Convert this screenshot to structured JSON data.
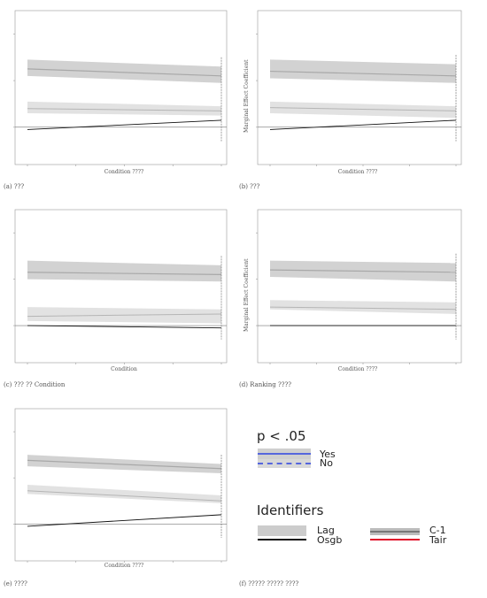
{
  "chart_data": [
    {
      "type": "line",
      "caption": "(a) ???",
      "ylabel": "",
      "xlabel": "Condition ????",
      "ylim": [
        -0.8,
        2.5
      ],
      "x": [
        0,
        1
      ],
      "series": [
        {
          "role": "lag_band",
          "lower": [
            1.1,
            0.95
          ],
          "upper": [
            1.45,
            1.3
          ]
        },
        {
          "role": "lag_mid",
          "values": [
            1.25,
            1.1
          ]
        },
        {
          "role": "lower_band",
          "lower": [
            0.3,
            0.25
          ],
          "upper": [
            0.55,
            0.45
          ]
        },
        {
          "role": "lower_mid",
          "values": [
            0.4,
            0.35
          ]
        },
        {
          "role": "osgb",
          "values": [
            -0.05,
            0.15
          ]
        }
      ]
    },
    {
      "type": "line",
      "caption": "(b) ???",
      "ylabel": "Marginal Effect Coefficient",
      "xlabel": "Condition ????",
      "ylim": [
        -0.8,
        2.5
      ],
      "x": [
        0,
        1
      ],
      "series": [
        {
          "role": "lag_band",
          "lower": [
            1.05,
            0.95
          ],
          "upper": [
            1.45,
            1.35
          ]
        },
        {
          "role": "lag_mid",
          "values": [
            1.2,
            1.1
          ]
        },
        {
          "role": "lower_band",
          "lower": [
            0.3,
            0.2
          ],
          "upper": [
            0.55,
            0.45
          ]
        },
        {
          "role": "lower_mid",
          "values": [
            0.42,
            0.35
          ]
        },
        {
          "role": "osgb",
          "values": [
            -0.05,
            0.15
          ]
        }
      ]
    },
    {
      "type": "line",
      "caption": "(c) ??? ?? Condition",
      "ylabel": "",
      "xlabel": "Condition",
      "ylim": [
        -0.8,
        2.5
      ],
      "x": [
        0,
        1
      ],
      "series": [
        {
          "role": "lag_band",
          "lower": [
            1.0,
            0.95
          ],
          "upper": [
            1.4,
            1.3
          ]
        },
        {
          "role": "lag_mid",
          "values": [
            1.15,
            1.1
          ]
        },
        {
          "role": "lower_band",
          "lower": [
            0.1,
            0.05
          ],
          "upper": [
            0.4,
            0.35
          ]
        },
        {
          "role": "lower_mid",
          "values": [
            0.2,
            0.25
          ]
        },
        {
          "role": "osgb",
          "values": [
            0.0,
            -0.05
          ]
        }
      ]
    },
    {
      "type": "line",
      "caption": "(d) Ranking ????",
      "ylabel": "Marginal Effect Coefficient",
      "xlabel": "Condition ????",
      "ylim": [
        -0.8,
        2.5
      ],
      "x": [
        0,
        1
      ],
      "series": [
        {
          "role": "lag_band",
          "lower": [
            1.05,
            0.95
          ],
          "upper": [
            1.4,
            1.35
          ]
        },
        {
          "role": "lag_mid",
          "values": [
            1.2,
            1.15
          ]
        },
        {
          "role": "lower_band",
          "lower": [
            0.35,
            0.25
          ],
          "upper": [
            0.55,
            0.5
          ]
        },
        {
          "role": "lower_mid",
          "values": [
            0.4,
            0.35
          ]
        },
        {
          "role": "osgb",
          "values": [
            0.0,
            0.0
          ]
        }
      ]
    },
    {
      "type": "line",
      "caption": "(e) ????",
      "ylabel": "",
      "xlabel": "Condition ????",
      "ylim": [
        -0.8,
        2.5
      ],
      "x": [
        0,
        1
      ],
      "series": [
        {
          "role": "lag_band",
          "lower": [
            1.25,
            1.1
          ],
          "upper": [
            1.5,
            1.3
          ]
        },
        {
          "role": "lag_mid",
          "values": [
            1.38,
            1.2
          ]
        },
        {
          "role": "lower_band",
          "lower": [
            0.65,
            0.45
          ],
          "upper": [
            0.85,
            0.62
          ]
        },
        {
          "role": "lower_mid",
          "values": [
            0.72,
            0.5
          ]
        },
        {
          "role": "osgb",
          "values": [
            -0.05,
            0.2
          ]
        }
      ]
    }
  ],
  "caption_f": "(f) ????? ????? ????",
  "legend": {
    "p_title": "p < .05",
    "p_items": [
      "Yes",
      "No"
    ],
    "id_title": "Identifiers",
    "id_items": [
      "Lag",
      "Osgb",
      "C-1",
      "Tair"
    ],
    "colors": {
      "band": "#cccccc",
      "line": "#111111",
      "yes": "#5566dd",
      "tair": "#e0102a",
      "gray": "#888888"
    }
  }
}
